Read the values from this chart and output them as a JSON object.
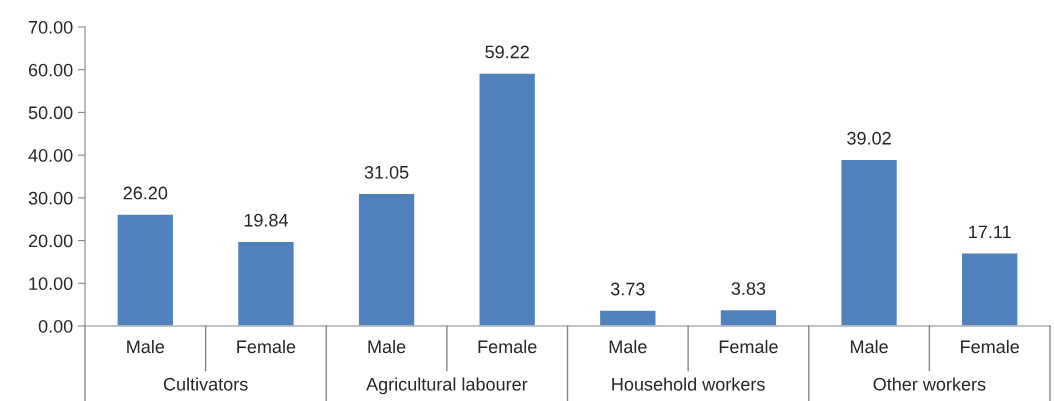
{
  "chart_data": {
    "type": "bar",
    "categories": [
      "Male",
      "Female",
      "Male",
      "Female",
      "Male",
      "Female",
      "Male",
      "Female"
    ],
    "values": [
      26.2,
      19.84,
      31.05,
      59.22,
      3.73,
      3.83,
      39.02,
      17.11
    ],
    "value_labels": [
      "26.20",
      "19.84",
      "31.05",
      "59.22",
      "3.73",
      "3.83",
      "39.02",
      "17.11"
    ],
    "color": "#4f81bd",
    "annotations": [
      "Cultivators",
      "Agricultural labourer",
      "Household workers",
      "Other workers"
    ],
    "ylim": [
      0,
      70
    ],
    "yticks": [
      {
        "value": 0,
        "label": "0.00"
      },
      {
        "value": 10,
        "label": "10.00"
      },
      {
        "value": 20,
        "label": "20.00"
      },
      {
        "value": 30,
        "label": "30.00"
      },
      {
        "value": 40,
        "label": "40.00"
      },
      {
        "value": 50,
        "label": "50.00"
      },
      {
        "value": 60,
        "label": "60.00"
      },
      {
        "value": 70,
        "label": "70.00"
      }
    ],
    "grid": false,
    "legend": false
  }
}
